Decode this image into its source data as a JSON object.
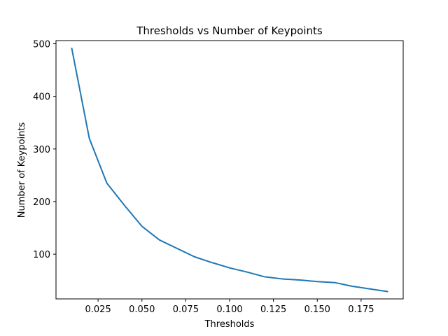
{
  "chart_data": {
    "type": "line",
    "title": "Thresholds vs Number of Keypoints",
    "xlabel": "Thresholds",
    "ylabel": "Number of Keypoints",
    "xlim": [
      0.001,
      0.199
    ],
    "ylim": [
      15,
      506
    ],
    "xticks": [
      "0.025",
      "0.050",
      "0.075",
      "0.100",
      "0.125",
      "0.150",
      "0.175"
    ],
    "yticks": [
      "100",
      "200",
      "300",
      "400",
      "500"
    ],
    "grid": false,
    "line_color": "#1f77b4",
    "series": [
      {
        "x": [
          0.01,
          0.02,
          0.03,
          0.04,
          0.05,
          0.06,
          0.07,
          0.08,
          0.09,
          0.1,
          0.11,
          0.12,
          0.13,
          0.14,
          0.15,
          0.16,
          0.17,
          0.18,
          0.19
        ],
        "values": [
          491,
          320,
          235,
          193,
          153,
          127,
          111,
          95,
          84,
          74,
          66,
          57,
          53,
          51,
          48,
          46,
          39,
          34,
          29
        ]
      }
    ]
  }
}
